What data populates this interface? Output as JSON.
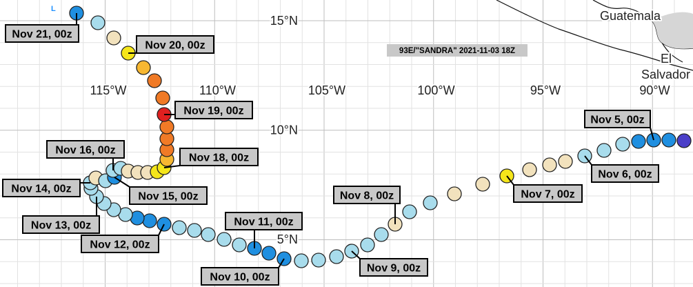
{
  "title": "93E/\"SANDRA\" 2021-11-03 18Z",
  "low_marker": "L",
  "lat_labels": [
    "15°N",
    "10°N",
    "5°N"
  ],
  "lon_labels": [
    "115°W",
    "110°W",
    "105°W",
    "100°W",
    "95°W",
    "90°W"
  ],
  "countries": [
    "Guatemala",
    "El",
    "Salvador"
  ],
  "track_labels": [
    "Nov 21, 00z",
    "Nov 20, 00z",
    "Nov 19, 00z",
    "Nov 18, 00z",
    "Nov 16, 00z",
    "Nov 14, 00z",
    "Nov 15, 00z",
    "Nov 13, 00z",
    "Nov 12, 00z",
    "Nov 11, 00z",
    "Nov 10, 00z",
    "Nov 9, 00z",
    "Nov 8, 00z",
    "Nov 7, 00z",
    "Nov 6, 00z",
    "Nov 5, 00z"
  ]
}
